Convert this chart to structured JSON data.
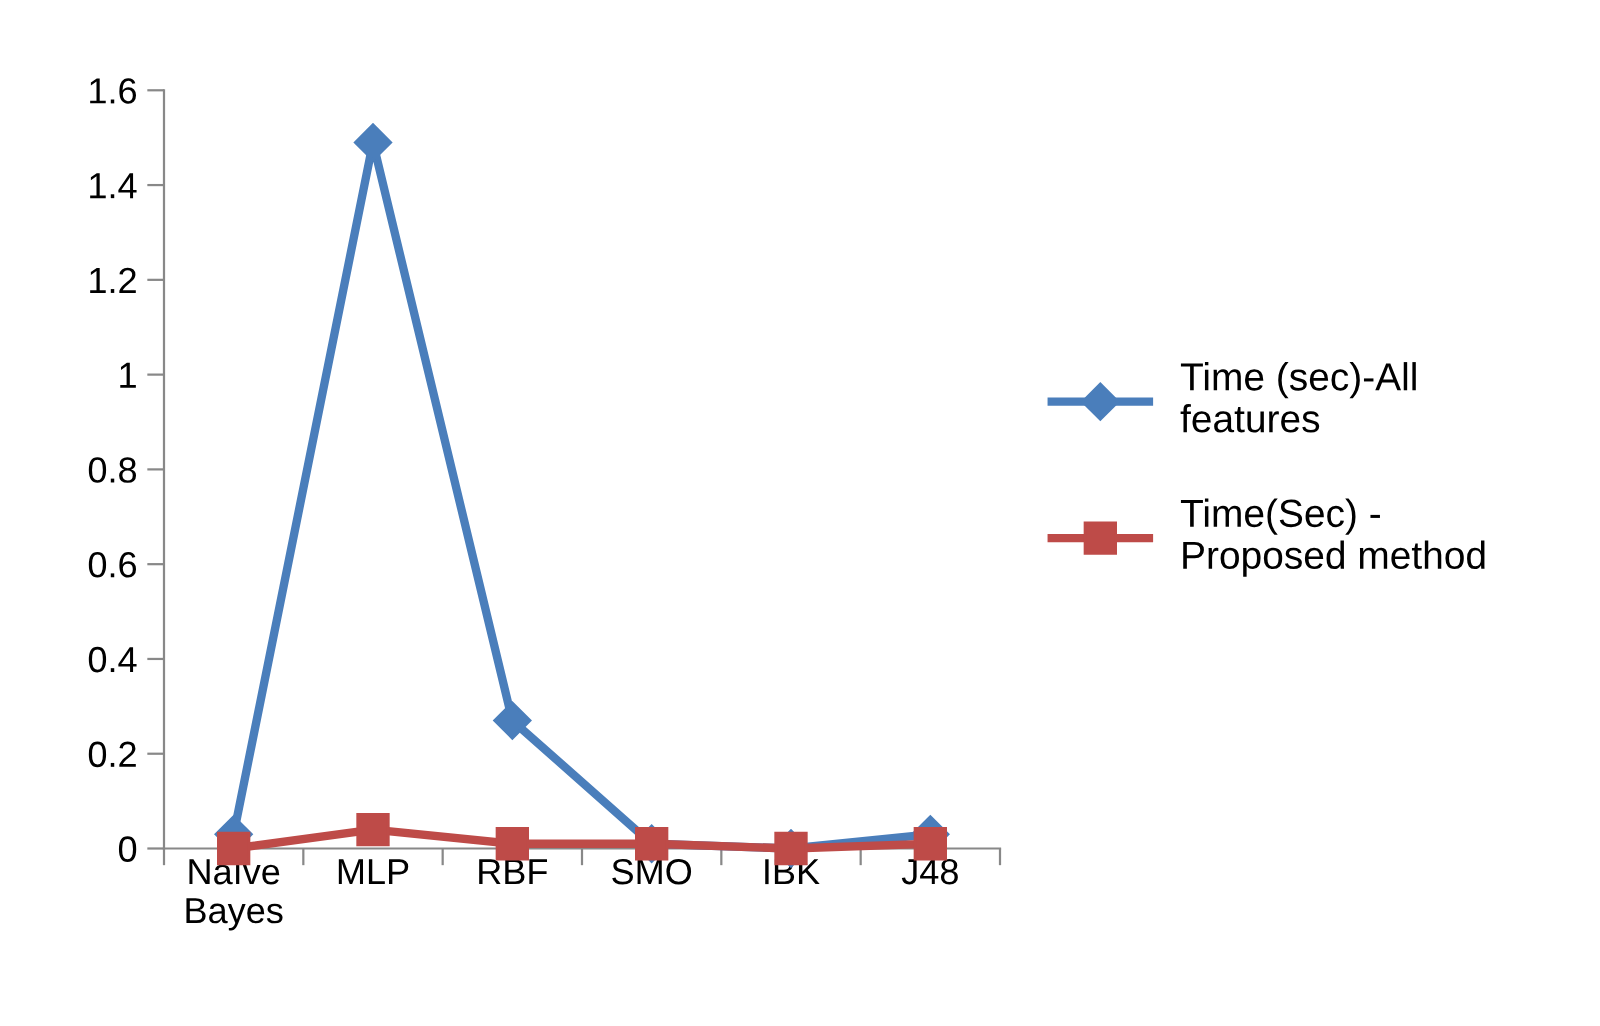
{
  "chart_data": {
    "type": "line",
    "categories": [
      "Naïve\nBayes",
      "MLP",
      "RBF",
      "SMO",
      "IBK",
      "J48"
    ],
    "series": [
      {
        "name": "Time (sec)-All\nfeatures",
        "color": "#4a7ebb",
        "marker": "diamond",
        "values": [
          0.03,
          1.49,
          0.27,
          0.01,
          0.0,
          0.03
        ]
      },
      {
        "name": "Time(Sec) -\nProposed method",
        "color": "#be4b48",
        "marker": "square",
        "values": [
          0.0,
          0.04,
          0.01,
          0.01,
          0.0,
          0.01
        ]
      }
    ],
    "ylim": [
      0,
      1.6
    ],
    "yticks": [
      0,
      0.2,
      0.4,
      0.6,
      0.8,
      1,
      1.2,
      1.4,
      1.6
    ],
    "grid": false,
    "legend": "right",
    "line_style": "solid"
  }
}
